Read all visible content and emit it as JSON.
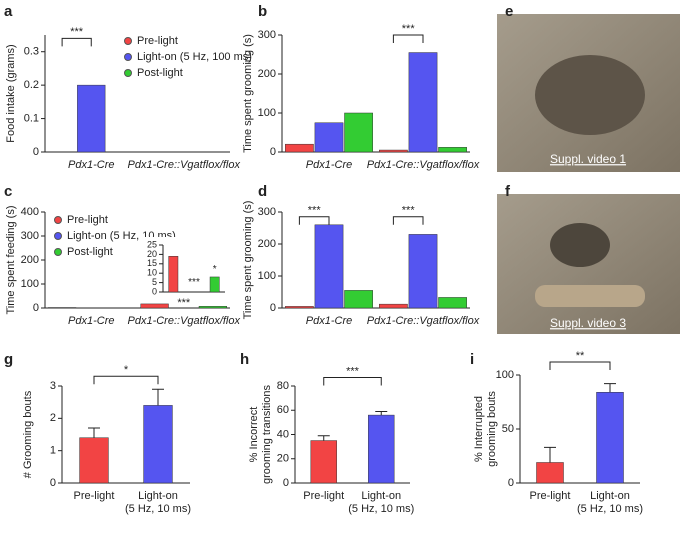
{
  "figure": {
    "panel_labels": [
      "a",
      "b",
      "c",
      "d",
      "e",
      "f",
      "g",
      "h",
      "i"
    ],
    "video_captions": [
      "Suppl. video 1",
      "Suppl. video 3"
    ]
  },
  "chart_data": [
    {
      "type": "bar",
      "y_label": [
        "Food intake (grams)"
      ],
      "categories": [
        [
          "Pdx1-Cre"
        ],
        [
          "Pdx1-Cre::Vgatflox/flox"
        ]
      ],
      "series": [
        {
          "name": "Pre-light",
          "color": "#f24444",
          "values": [
            0,
            0
          ]
        },
        {
          "name": "Light-on (5 Hz, 100 ms)",
          "color": "#5555f0",
          "values": [
            0.2,
            0
          ]
        },
        {
          "name": "Post-light",
          "color": "#33cc33",
          "values": [
            0,
            0
          ]
        }
      ],
      "ylim": [
        0,
        0.35
      ],
      "yticks": [
        0,
        0.1,
        0.2,
        0.3
      ],
      "legend": "upper right",
      "annotations": [
        "***"
      ]
    },
    {
      "type": "bar",
      "y_label": [
        "Time spent grooming (s)"
      ],
      "categories": [
        [
          "Pdx1-Cre"
        ],
        [
          "Pdx1-Cre::Vgatflox/flox"
        ]
      ],
      "series": [
        {
          "name": "Pre-light",
          "color": "#f24444",
          "values": [
            20,
            5
          ]
        },
        {
          "name": "Light-on",
          "color": "#5555f0",
          "values": [
            75,
            255
          ]
        },
        {
          "name": "Post-light",
          "color": "#33cc33",
          "values": [
            100,
            12
          ]
        }
      ],
      "ylim": [
        0,
        300
      ],
      "yticks": [
        0,
        100,
        200,
        300
      ],
      "annotations": [
        "***"
      ]
    },
    {
      "type": "bar",
      "y_label": [
        "Time spent feeding (s)"
      ],
      "categories": [
        [
          "Pdx1-Cre"
        ],
        [
          "Pdx1-Cre::Vgatflox/flox"
        ]
      ],
      "series": [
        {
          "name": "Pre-light",
          "color": "#f24444",
          "values": [
            2,
            17
          ]
        },
        {
          "name": "Light-on (5 Hz, 10 ms)",
          "color": "#5555f0",
          "values": [
            0,
            0
          ]
        },
        {
          "name": "Post-light",
          "color": "#33cc33",
          "values": [
            0,
            7
          ]
        }
      ],
      "ylim": [
        0,
        400
      ],
      "yticks": [
        0,
        100,
        200,
        300,
        400
      ],
      "legend": "upper left",
      "annotations": [
        "***",
        "*"
      ]
    },
    {
      "type": "bar",
      "categories": [
        null,
        null,
        null
      ],
      "values": [
        19,
        0,
        8
      ],
      "colors": [
        "#f24444",
        "#5555f0",
        "#33cc33"
      ],
      "ylim": [
        0,
        25
      ],
      "yticks": [
        0,
        5,
        10,
        15,
        20,
        25
      ],
      "annotations": [
        "***",
        "*"
      ]
    },
    {
      "type": "bar",
      "y_label": [
        "Time spent grooming (s)"
      ],
      "categories": [
        [
          "Pdx1-Cre"
        ],
        [
          "Pdx1-Cre::Vgatflox/flox"
        ]
      ],
      "series": [
        {
          "name": "Pre-light",
          "color": "#f24444",
          "values": [
            5,
            12
          ]
        },
        {
          "name": "Light-on",
          "color": "#5555f0",
          "values": [
            260,
            230
          ]
        },
        {
          "name": "Post-light",
          "color": "#33cc33",
          "values": [
            55,
            33
          ]
        }
      ],
      "ylim": [
        0,
        300
      ],
      "yticks": [
        0,
        100,
        200,
        300
      ],
      "annotations": [
        "***",
        "***"
      ]
    },
    {
      "type": "bar",
      "y_label": [
        "# Grooming bouts"
      ],
      "categories": [
        [
          "Pre-light"
        ],
        [
          "Light-on",
          "(5 Hz, 10 ms)"
        ]
      ],
      "values": [
        1.4,
        2.4
      ],
      "errors": [
        0.3,
        0.5
      ],
      "colors": [
        "#f24444",
        "#5555f0"
      ],
      "ylim": [
        0,
        3
      ],
      "yticks": [
        0,
        1,
        2,
        3
      ],
      "annotations": [
        "*"
      ]
    },
    {
      "type": "bar",
      "y_label": [
        "% Incorrect",
        "grooming transitions"
      ],
      "categories": [
        [
          "Pre-light"
        ],
        [
          "Light-on",
          "(5 Hz, 10 ms)"
        ]
      ],
      "values": [
        35,
        56
      ],
      "errors": [
        4,
        3
      ],
      "colors": [
        "#f24444",
        "#5555f0"
      ],
      "ylim": [
        0,
        80
      ],
      "yticks": [
        0,
        20,
        40,
        60,
        80
      ],
      "annotations": [
        "***"
      ]
    },
    {
      "type": "bar",
      "y_label": [
        "% Interrupted",
        "grooming bouts"
      ],
      "categories": [
        [
          "Pre-light"
        ],
        [
          "Light-on",
          "(5 Hz, 10 ms)"
        ]
      ],
      "values": [
        19,
        84
      ],
      "errors": [
        14,
        8
      ],
      "colors": [
        "#f24444",
        "#5555f0"
      ],
      "ylim": [
        0,
        100
      ],
      "yticks": [
        0,
        50,
        100
      ],
      "annotations": [
        "**"
      ]
    }
  ]
}
